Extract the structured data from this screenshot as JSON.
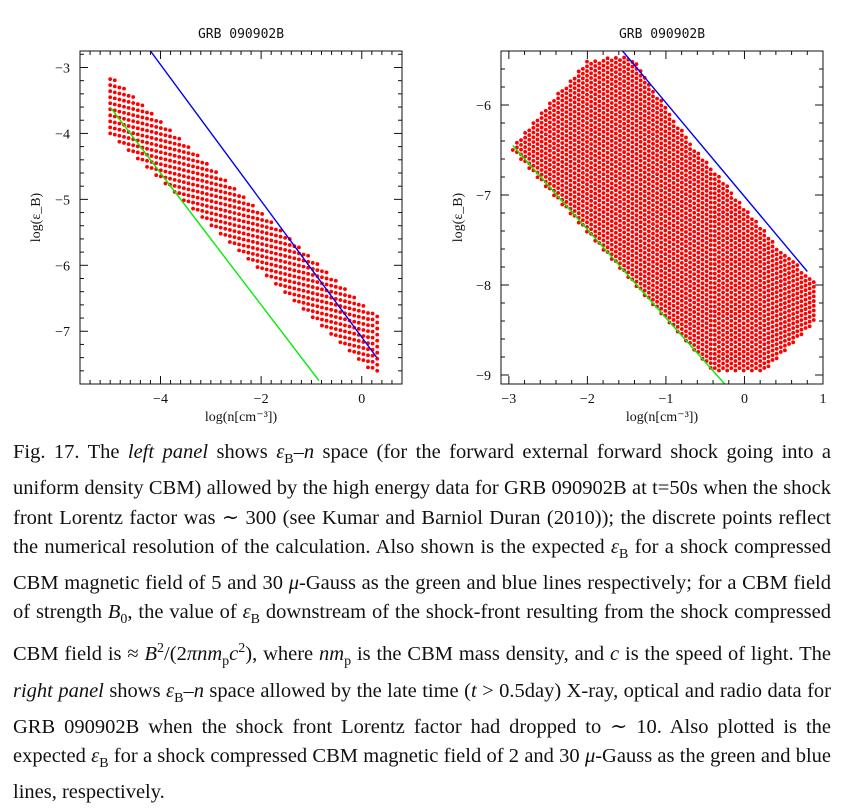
{
  "chart_data": [
    {
      "type": "scatter",
      "title": "GRB 090902B",
      "xlabel": "log(n[cm⁻³])",
      "ylabel": "log(ε_B)",
      "xlim": [
        -5.6,
        0.8
      ],
      "ylim": [
        -7.8,
        -2.75
      ],
      "xticks": [
        -4,
        -2,
        0
      ],
      "xtick_labels": [
        "−4",
        "−2",
        "0"
      ],
      "yticks": [
        -3,
        -4,
        -5,
        -6,
        -7
      ],
      "ytick_labels": [
        "−3",
        "−4",
        "−5",
        "−6",
        "−7"
      ],
      "grid": false,
      "point_color": "#ff0000",
      "allowed_region": {
        "x_range": [
          -5.0,
          0.35
        ],
        "grid_step": 0.0915,
        "upper_boundary": [
          [
            -5.0,
            -3.1
          ],
          [
            0.35,
            -6.8
          ]
        ],
        "lower_boundary": [
          [
            -5.0,
            -4.0
          ],
          [
            0.2,
            -7.6
          ]
        ]
      },
      "lines": [
        {
          "name": "5 μ-Gauss",
          "color": "#00ee00",
          "points": [
            [
              -5.0,
              -3.6
            ],
            [
              -0.85,
              -7.75
            ]
          ]
        },
        {
          "name": "30 μ-Gauss",
          "color": "#0000ee",
          "points": [
            [
              -4.2,
              -2.75
            ],
            [
              0.3,
              -7.4
            ]
          ]
        }
      ]
    },
    {
      "type": "scatter",
      "title": "GRB 090902B",
      "xlabel": "log(n[cm⁻³])",
      "ylabel": "log(ε_B)",
      "xlim": [
        -3.1,
        1.0
      ],
      "ylim": [
        -9.1,
        -5.4
      ],
      "xticks": [
        -3,
        -2,
        -1,
        0,
        1
      ],
      "xtick_labels": [
        "−3",
        "−2",
        "−1",
        "0",
        "1"
      ],
      "yticks": [
        -6,
        -7,
        -8,
        -9
      ],
      "ytick_labels": [
        "−6",
        "−7",
        "−8",
        "−9"
      ],
      "grid": false,
      "point_color": "#ff0000",
      "allowed_region": {
        "x_range": [
          -2.95,
          0.9
        ],
        "grid_step": 0.0525,
        "upper_boundary": [
          [
            -2.95,
            -6.45
          ],
          [
            -2.0,
            -5.5
          ],
          [
            -1.45,
            -5.45
          ],
          [
            -0.7,
            -6.4
          ],
          [
            0.45,
            -7.6
          ],
          [
            0.9,
            -7.95
          ]
        ],
        "lower_boundary": [
          [
            -2.95,
            -6.5
          ],
          [
            -0.4,
            -8.95
          ],
          [
            0.25,
            -8.95
          ],
          [
            0.9,
            -8.4
          ]
        ]
      },
      "lines": [
        {
          "name": "2 μ-Gauss",
          "color": "#00ee00",
          "points": [
            [
              -2.95,
              -6.45
            ],
            [
              -0.2,
              -9.15
            ]
          ]
        },
        {
          "name": "30 μ-Gauss",
          "color": "#0000ee",
          "points": [
            [
              -1.6,
              -5.35
            ],
            [
              0.8,
              -7.85
            ]
          ]
        }
      ]
    }
  ],
  "caption": {
    "fig_label": "Fig. 17.",
    "parts": [
      {
        "t": " The "
      },
      {
        "t": "left panel",
        "s": "it"
      },
      {
        "t": " shows "
      },
      {
        "t": "ε",
        "s": "it"
      },
      {
        "t": "B",
        "s": "sub"
      },
      {
        "t": "–"
      },
      {
        "t": "n",
        "s": "it"
      },
      {
        "t": " space (for the forward external forward shock going into a uniform density CBM) allowed by the high energy data for GRB 090902B at t=50s when the shock front Lorentz factor was ∼ 300 (see Kumar and Barniol Duran (2010)); the discrete points reflect the numerical resolution of the calculation. Also shown is the expected "
      },
      {
        "t": "ε",
        "s": "it"
      },
      {
        "t": "B",
        "s": "sub"
      },
      {
        "t": " for a shock compressed CBM magnetic field of 5 and 30 "
      },
      {
        "t": "μ",
        "s": "it"
      },
      {
        "t": "-Gauss as the green and blue lines respectively; for a CBM field of strength "
      },
      {
        "t": "B",
        "s": "it"
      },
      {
        "t": "0",
        "s": "sub"
      },
      {
        "t": ", the value of "
      },
      {
        "t": "ε",
        "s": "it"
      },
      {
        "t": "B",
        "s": "sub"
      },
      {
        "t": " downstream of the shock-front resulting from the shock compressed CBM field is ≈ "
      },
      {
        "t": "B",
        "s": "it"
      },
      {
        "t": "2",
        "s": "supsub"
      },
      {
        "t": "/(2"
      },
      {
        "t": "πnm",
        "s": "it"
      },
      {
        "t": "p",
        "s": "sub"
      },
      {
        "t": "c",
        "s": "it"
      },
      {
        "t": "2",
        "s": "sup"
      },
      {
        "t": "), where "
      },
      {
        "t": "nm",
        "s": "it"
      },
      {
        "t": "p",
        "s": "sub"
      },
      {
        "t": " is the CBM mass density, and "
      },
      {
        "t": "c",
        "s": "it"
      },
      {
        "t": " is the speed of light. The "
      },
      {
        "t": "right panel",
        "s": "it"
      },
      {
        "t": " shows "
      },
      {
        "t": "ε",
        "s": "it"
      },
      {
        "t": "B",
        "s": "sub"
      },
      {
        "t": "–"
      },
      {
        "t": "n",
        "s": "it"
      },
      {
        "t": " space allowed by the late time ("
      },
      {
        "t": "t",
        "s": "it"
      },
      {
        "t": " > 0.5day) X-ray, optical and radio data for GRB 090902B when the shock front Lorentz factor had dropped to ∼ 10. Also plotted is the expected "
      },
      {
        "t": "ε",
        "s": "it"
      },
      {
        "t": "B",
        "s": "sub"
      },
      {
        "t": " for a shock compressed CBM magnetic field of 2 and 30 "
      },
      {
        "t": "μ",
        "s": "it"
      },
      {
        "t": "-Gauss as the green and blue lines, respectively."
      }
    ]
  }
}
